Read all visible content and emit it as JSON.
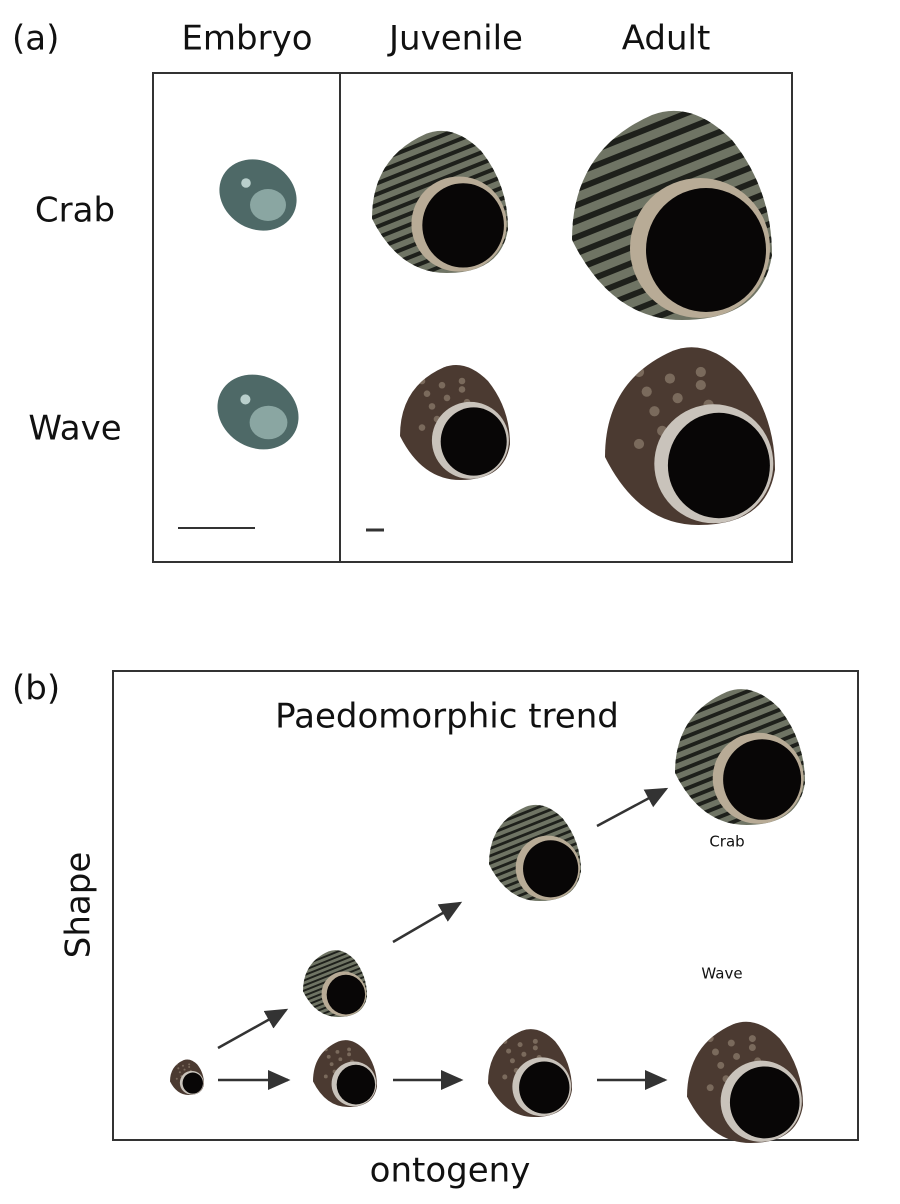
{
  "panel_a": {
    "label": "(a)",
    "columns": [
      "Embryo",
      "Juvenile",
      "Adult"
    ],
    "rows": [
      "Crab",
      "Wave"
    ]
  },
  "panel_b": {
    "label": "(b)",
    "title": "Paedomorphic trend",
    "series_labels": [
      "Crab",
      "Wave"
    ],
    "y_axis": "Shape",
    "x_axis": "ontogeny"
  }
}
